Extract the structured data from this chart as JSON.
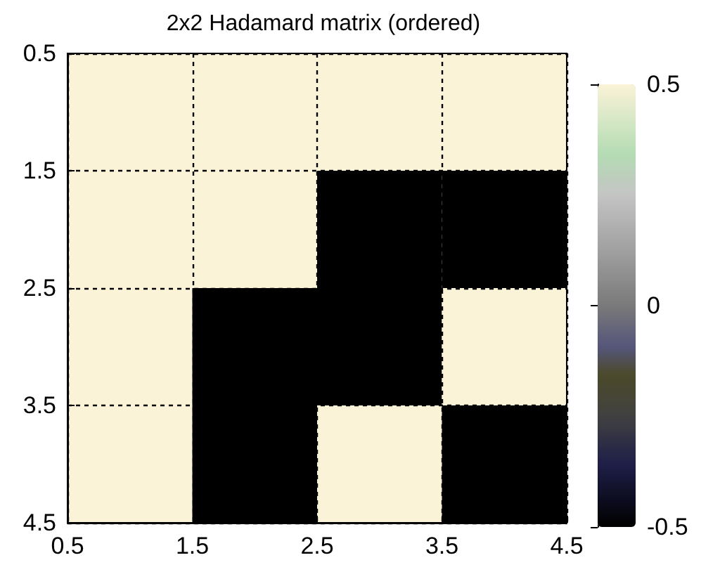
{
  "chart_data": {
    "type": "heatmap",
    "title": "2x2 Hadamard matrix (ordered)",
    "cells": [
      [
        0.5,
        0.5,
        0.5,
        0.5
      ],
      [
        0.5,
        0.5,
        -0.5,
        -0.5
      ],
      [
        0.5,
        -0.5,
        -0.5,
        0.5
      ],
      [
        0.5,
        -0.5,
        0.5,
        -0.5
      ]
    ],
    "xlim": [
      0.5,
      4.5
    ],
    "xticks": [
      0.5,
      1.5,
      2.5,
      3.5,
      4.5
    ],
    "ylim": [
      4.5,
      0.5
    ],
    "yticks": [
      0.5,
      1.5,
      2.5,
      3.5,
      4.5
    ],
    "clim": [
      -0.5,
      0.5
    ],
    "cticks": [
      -0.5,
      0,
      0.5
    ],
    "grid": true
  }
}
